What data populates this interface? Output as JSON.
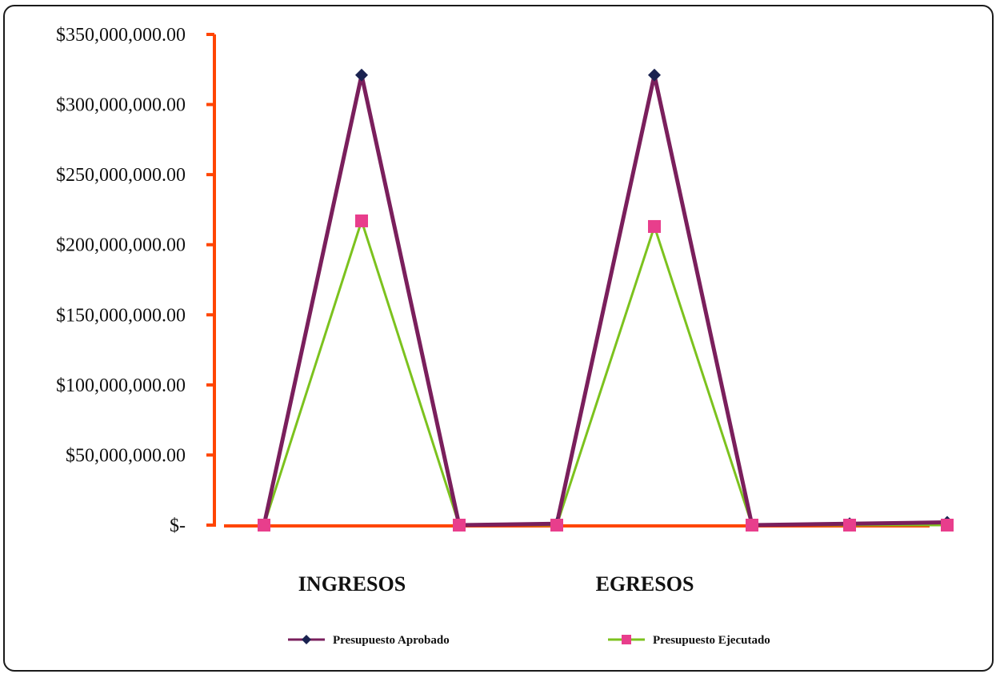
{
  "chart_data": {
    "type": "line",
    "title": "",
    "xlabel": "",
    "ylabel": "",
    "ylim": [
      0,
      350000000
    ],
    "y_ticks": [
      {
        "value": 350000000,
        "label": "$350,000,000.00"
      },
      {
        "value": 300000000,
        "label": "$300,000,000.00"
      },
      {
        "value": 250000000,
        "label": "$250,000,000.00"
      },
      {
        "value": 200000000,
        "label": "$200,000,000.00"
      },
      {
        "value": 150000000,
        "label": "$150,000,000.00"
      },
      {
        "value": 100000000,
        "label": "$100,000,000.00"
      },
      {
        "value": 50000000,
        "label": "$50,000,000.00"
      },
      {
        "value": 0,
        "label": "$-"
      }
    ],
    "category_groups": [
      {
        "label": "INGRESOS",
        "center_index": 1
      },
      {
        "label": "EGRESOS",
        "center_index": 4
      }
    ],
    "point_count": 8,
    "series": [
      {
        "name": "Presupuesto Aprobado",
        "color": "#7a1f5c",
        "marker": "diamond",
        "marker_color": "#1a2250",
        "values": [
          0,
          321000000,
          0,
          1000000,
          321000000,
          0,
          1000000,
          2000000
        ]
      },
      {
        "name": "Presupuesto Ejecutado",
        "color": "#7cc21e",
        "marker": "square",
        "marker_color": "#e83e8c",
        "values": [
          0,
          217000000,
          0,
          0,
          213000000,
          0,
          0,
          0
        ]
      }
    ],
    "axis_color": "#ff4500",
    "grid": false,
    "legend_position": "bottom"
  }
}
